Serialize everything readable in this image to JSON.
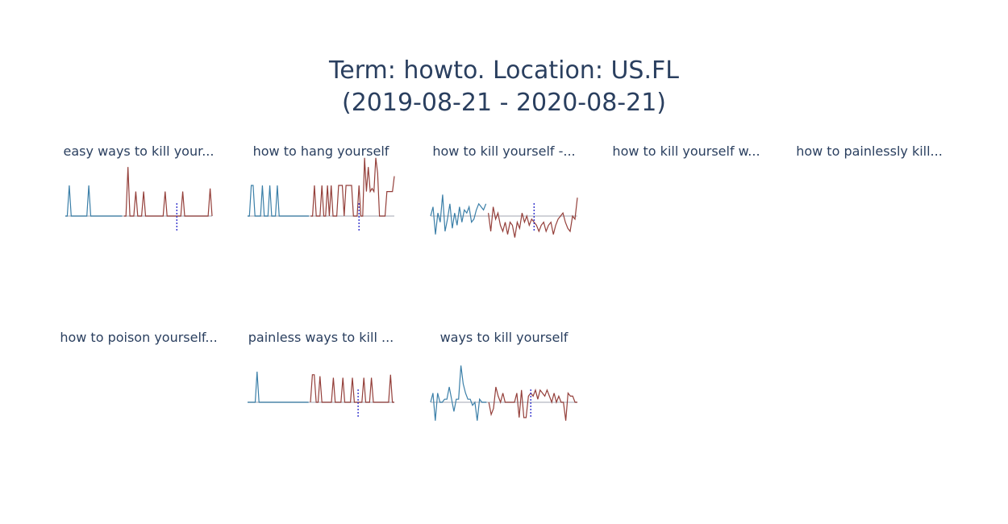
{
  "title": {
    "line1": "Term: howto. Location: US.FL",
    "line2": "(2019-08-21 - 2020-08-21)"
  },
  "colors": {
    "title": "#2a3f5f",
    "before": "#3b7fa8",
    "after": "#943f3a",
    "baseline": "#c0c4cc",
    "marker": "#3333cc"
  },
  "chart_data": [
    {
      "type": "line",
      "title": "easy ways to kill your...",
      "has_data": true,
      "before": [
        0,
        0,
        1,
        0,
        0,
        0,
        0,
        0,
        0,
        0,
        0,
        0,
        1,
        0,
        0,
        0,
        0,
        0,
        0,
        0,
        0,
        0,
        0,
        0,
        0,
        0,
        0,
        0,
        0,
        0
      ],
      "after": [
        0,
        0,
        1.6,
        0,
        0,
        0,
        0.8,
        0,
        0,
        0,
        0.8,
        0,
        0,
        0,
        0,
        0,
        0,
        0,
        0,
        0,
        0,
        0.8,
        0,
        0,
        0,
        0,
        0,
        0,
        0,
        0,
        0.8,
        0,
        0,
        0,
        0,
        0,
        0,
        0,
        0,
        0,
        0,
        0,
        0,
        0,
        0.9,
        0
      ],
      "marker_index": 27
    },
    {
      "type": "line",
      "title": "how to hang yourself",
      "has_data": true,
      "before": [
        0,
        0,
        1,
        1,
        0,
        0,
        0,
        0,
        1,
        0,
        0,
        0,
        1,
        0,
        0,
        0,
        1,
        0,
        0,
        0,
        0,
        0,
        0,
        0,
        0,
        0,
        0,
        0,
        0,
        0,
        0,
        0,
        0,
        0
      ],
      "after": [
        0,
        0,
        1,
        0,
        0,
        0,
        1,
        0,
        0,
        1,
        0,
        1,
        0,
        0,
        0,
        1,
        1,
        1,
        0,
        1,
        1,
        1,
        1,
        0,
        0,
        0,
        1,
        0,
        0,
        1.9,
        0.8,
        1.6,
        0.8,
        0.9,
        0.8,
        1.9,
        1.4,
        0,
        0,
        0,
        0,
        0.8,
        0.8,
        0.8,
        0.8,
        1.3
      ],
      "marker_index": 26
    },
    {
      "type": "line",
      "title": "how to kill yourself -...",
      "has_data": true,
      "before": [
        0,
        0.3,
        -0.6,
        0.1,
        -0.2,
        0.7,
        -0.5,
        -0.1,
        0.4,
        -0.4,
        0.1,
        -0.3,
        0.3,
        -0.2,
        0.2,
        0.1,
        0.3,
        -0.2,
        -0.1,
        0.2,
        0.4,
        0.3,
        0.2,
        0.4
      ],
      "after": [
        0.1,
        -0.5,
        0.3,
        -0.1,
        0.1,
        -0.3,
        -0.5,
        -0.2,
        -0.6,
        -0.2,
        -0.3,
        -0.7,
        -0.2,
        -0.4,
        0.1,
        -0.2,
        0,
        -0.3,
        -0.1,
        -0.2,
        -0.3,
        -0.5,
        -0.3,
        -0.2,
        -0.5,
        -0.3,
        -0.2,
        -0.6,
        -0.3,
        -0.1,
        0,
        0.1,
        -0.2,
        -0.4,
        -0.5,
        0,
        -0.1,
        0.6
      ],
      "marker_index": 19
    },
    {
      "type": "line",
      "title": "how to kill yourself w...",
      "has_data": false,
      "before": [],
      "after": [],
      "marker_index": 0
    },
    {
      "type": "line",
      "title": "how to painlessly kill...",
      "has_data": false,
      "before": [],
      "after": [],
      "marker_index": 0
    },
    {
      "type": "line",
      "title": "how to poison yourself...",
      "has_data": false,
      "before": [],
      "after": [],
      "marker_index": 0
    },
    {
      "type": "line",
      "title": "painless ways to kill ...",
      "has_data": true,
      "before": [
        0,
        0,
        0,
        0,
        0,
        1,
        0,
        0,
        0,
        0,
        0,
        0,
        0,
        0,
        0,
        0,
        0,
        0,
        0,
        0,
        0,
        0,
        0,
        0,
        0,
        0,
        0,
        0,
        0,
        0,
        0,
        0,
        0
      ],
      "after": [
        0,
        0.9,
        0.9,
        0,
        0,
        0.85,
        0,
        0,
        0,
        0,
        0,
        0,
        0.8,
        0,
        0,
        0,
        0,
        0.8,
        0,
        0,
        0,
        0,
        0.8,
        0,
        0,
        0,
        0,
        0,
        0.8,
        0,
        0,
        0,
        0.8,
        0,
        0,
        0,
        0,
        0,
        0,
        0,
        0,
        0,
        0.9,
        0,
        0
      ],
      "marker_index": 25
    },
    {
      "type": "line",
      "title": "ways to kill yourself",
      "has_data": true,
      "before": [
        0,
        0.3,
        -0.6,
        0.3,
        0,
        0,
        0.1,
        0.1,
        0.5,
        0.1,
        -0.3,
        0.1,
        0.1,
        1.2,
        0.6,
        0.3,
        0.1,
        0.1,
        -0.1,
        0,
        -0.6,
        0.1,
        0,
        0,
        0
      ],
      "after": [
        0,
        -0.4,
        -0.2,
        0.5,
        0.2,
        0,
        0.3,
        0,
        0,
        0,
        0,
        0,
        0.3,
        -0.5,
        0.4,
        -0.5,
        -0.5,
        0.2,
        0.3,
        0.2,
        0.4,
        0.1,
        0.4,
        0.3,
        0.2,
        0.4,
        0.2,
        0,
        0.3,
        0,
        0.2,
        0,
        0,
        -0.6,
        0.3,
        0.2,
        0.2,
        0,
        0
      ],
      "marker_index": 18
    }
  ]
}
